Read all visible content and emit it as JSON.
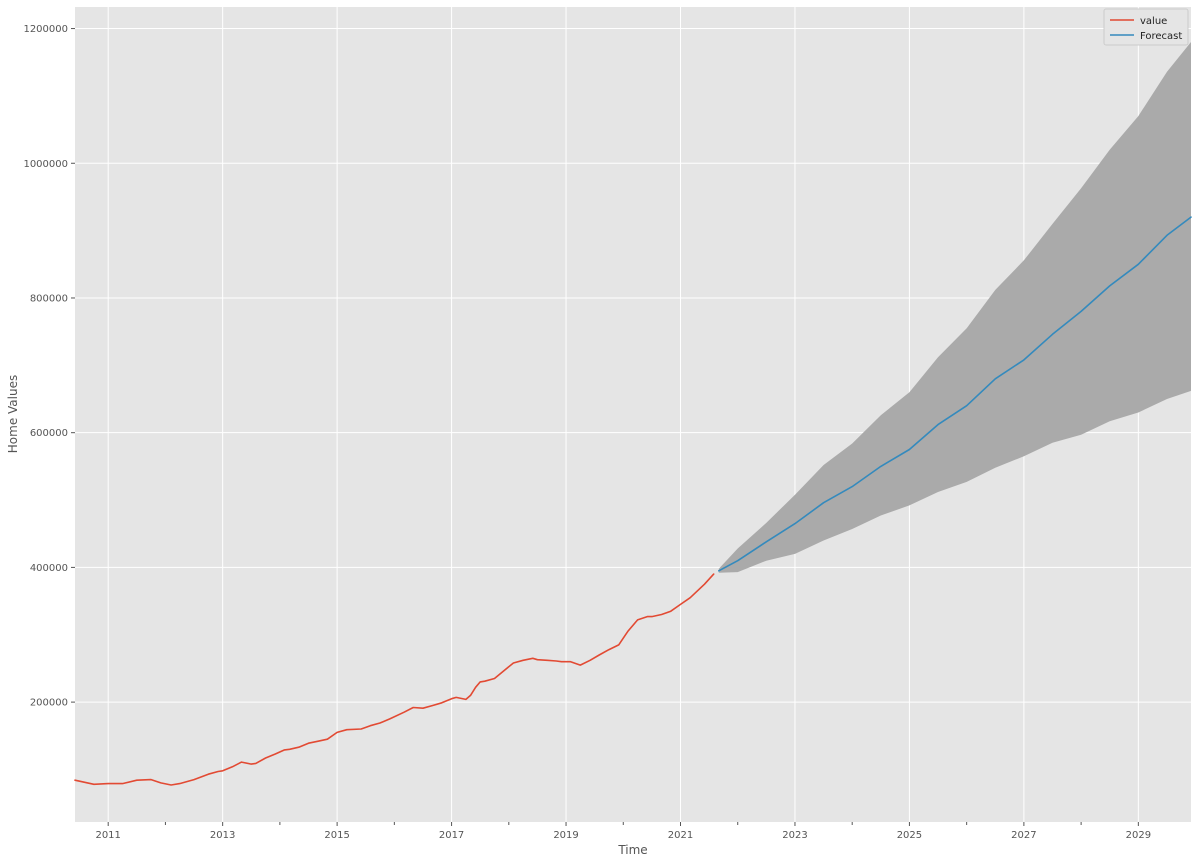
{
  "chart_data": {
    "type": "line",
    "xlabel": "Time",
    "ylabel": "Home Values",
    "xlim": [
      2010.42,
      2029.92
    ],
    "ylim": [
      22000,
      1232000
    ],
    "grid": true,
    "legend_placement": "top-right",
    "x_ticks": [
      2011,
      2013,
      2015,
      2017,
      2019,
      2021,
      2023,
      2025,
      2027,
      2029
    ],
    "x_tick_labels": [
      "2011",
      "2013",
      "2015",
      "2017",
      "2019",
      "2021",
      "2023",
      "2025",
      "2027",
      "2029"
    ],
    "x_minor_ticks": [
      2012,
      2014,
      2016,
      2018,
      2020,
      2022,
      2024,
      2026,
      2028
    ],
    "y_ticks": [
      200000,
      400000,
      600000,
      800000,
      1000000,
      1200000
    ],
    "y_tick_labels": [
      "200000",
      "400000",
      "600000",
      "800000",
      "1000000",
      "1200000"
    ],
    "series": [
      {
        "name": "value",
        "color": "#e24a33",
        "x": [
          2010.42,
          2010.75,
          2011.0,
          2011.25,
          2011.5,
          2011.75,
          2011.92,
          2012.1,
          2012.25,
          2012.5,
          2012.75,
          2012.92,
          2013.0,
          2013.17,
          2013.33,
          2013.5,
          2013.58,
          2013.75,
          2013.92,
          2014.08,
          2014.17,
          2014.33,
          2014.5,
          2014.67,
          2014.83,
          2015.0,
          2015.17,
          2015.42,
          2015.58,
          2015.75,
          2015.92,
          2016.17,
          2016.33,
          2016.5,
          2016.67,
          2016.83,
          2017.0,
          2017.08,
          2017.25,
          2017.33,
          2017.42,
          2017.5,
          2017.58,
          2017.75,
          2017.92,
          2018.08,
          2018.25,
          2018.42,
          2018.5,
          2018.67,
          2018.83,
          2018.92,
          2019.08,
          2019.25,
          2019.42,
          2019.58,
          2019.75,
          2019.92,
          2020.08,
          2020.25,
          2020.42,
          2020.5,
          2020.67,
          2020.83,
          2021.0,
          2021.17,
          2021.42,
          2021.58
        ],
        "values": [
          84000,
          78000,
          79000,
          79000,
          84000,
          85000,
          80000,
          77000,
          79000,
          85000,
          93000,
          97000,
          98000,
          104000,
          111000,
          108000,
          109000,
          117000,
          123000,
          129000,
          130000,
          133000,
          139000,
          142000,
          145000,
          155000,
          159000,
          160000,
          165000,
          169000,
          175000,
          185000,
          192000,
          191000,
          195000,
          199000,
          205000,
          207000,
          204000,
          210000,
          222000,
          230000,
          231000,
          235000,
          247000,
          258000,
          262000,
          265000,
          263000,
          262000,
          261000,
          260000,
          260000,
          255000,
          262000,
          270000,
          278000,
          285000,
          305000,
          322000,
          327000,
          327000,
          330000,
          335000,
          345000,
          355000,
          375000,
          390000
        ]
      },
      {
        "name": "Forecast",
        "color": "#348abd",
        "x": [
          2021.67,
          2022.0,
          2022.5,
          2023.0,
          2023.5,
          2024.0,
          2024.5,
          2025.0,
          2025.5,
          2026.0,
          2026.5,
          2027.0,
          2027.5,
          2028.0,
          2028.5,
          2029.0,
          2029.5,
          2029.92
        ],
        "values": [
          395000,
          410000,
          438000,
          465000,
          496000,
          520000,
          550000,
          575000,
          612000,
          640000,
          680000,
          708000,
          746000,
          780000,
          818000,
          850000,
          893000,
          920000
        ],
        "ci_lower": [
          392000,
          393000,
          410000,
          420000,
          440000,
          457000,
          477000,
          492000,
          512000,
          527000,
          548000,
          565000,
          585000,
          597000,
          617000,
          630000,
          650000,
          662000
        ],
        "ci_upper": [
          398000,
          428000,
          466000,
          508000,
          552000,
          584000,
          626000,
          660000,
          712000,
          755000,
          812000,
          856000,
          910000,
          963000,
          1020000,
          1070000,
          1136000,
          1180000
        ]
      }
    ]
  },
  "legend": {
    "items": [
      {
        "label": "value",
        "color": "#e24a33"
      },
      {
        "label": "Forecast",
        "color": "#348abd"
      }
    ]
  },
  "colors": {
    "plot_background": "#e5e5e5",
    "grid": "#ffffff",
    "confidence_band": "#aaaaaa"
  }
}
